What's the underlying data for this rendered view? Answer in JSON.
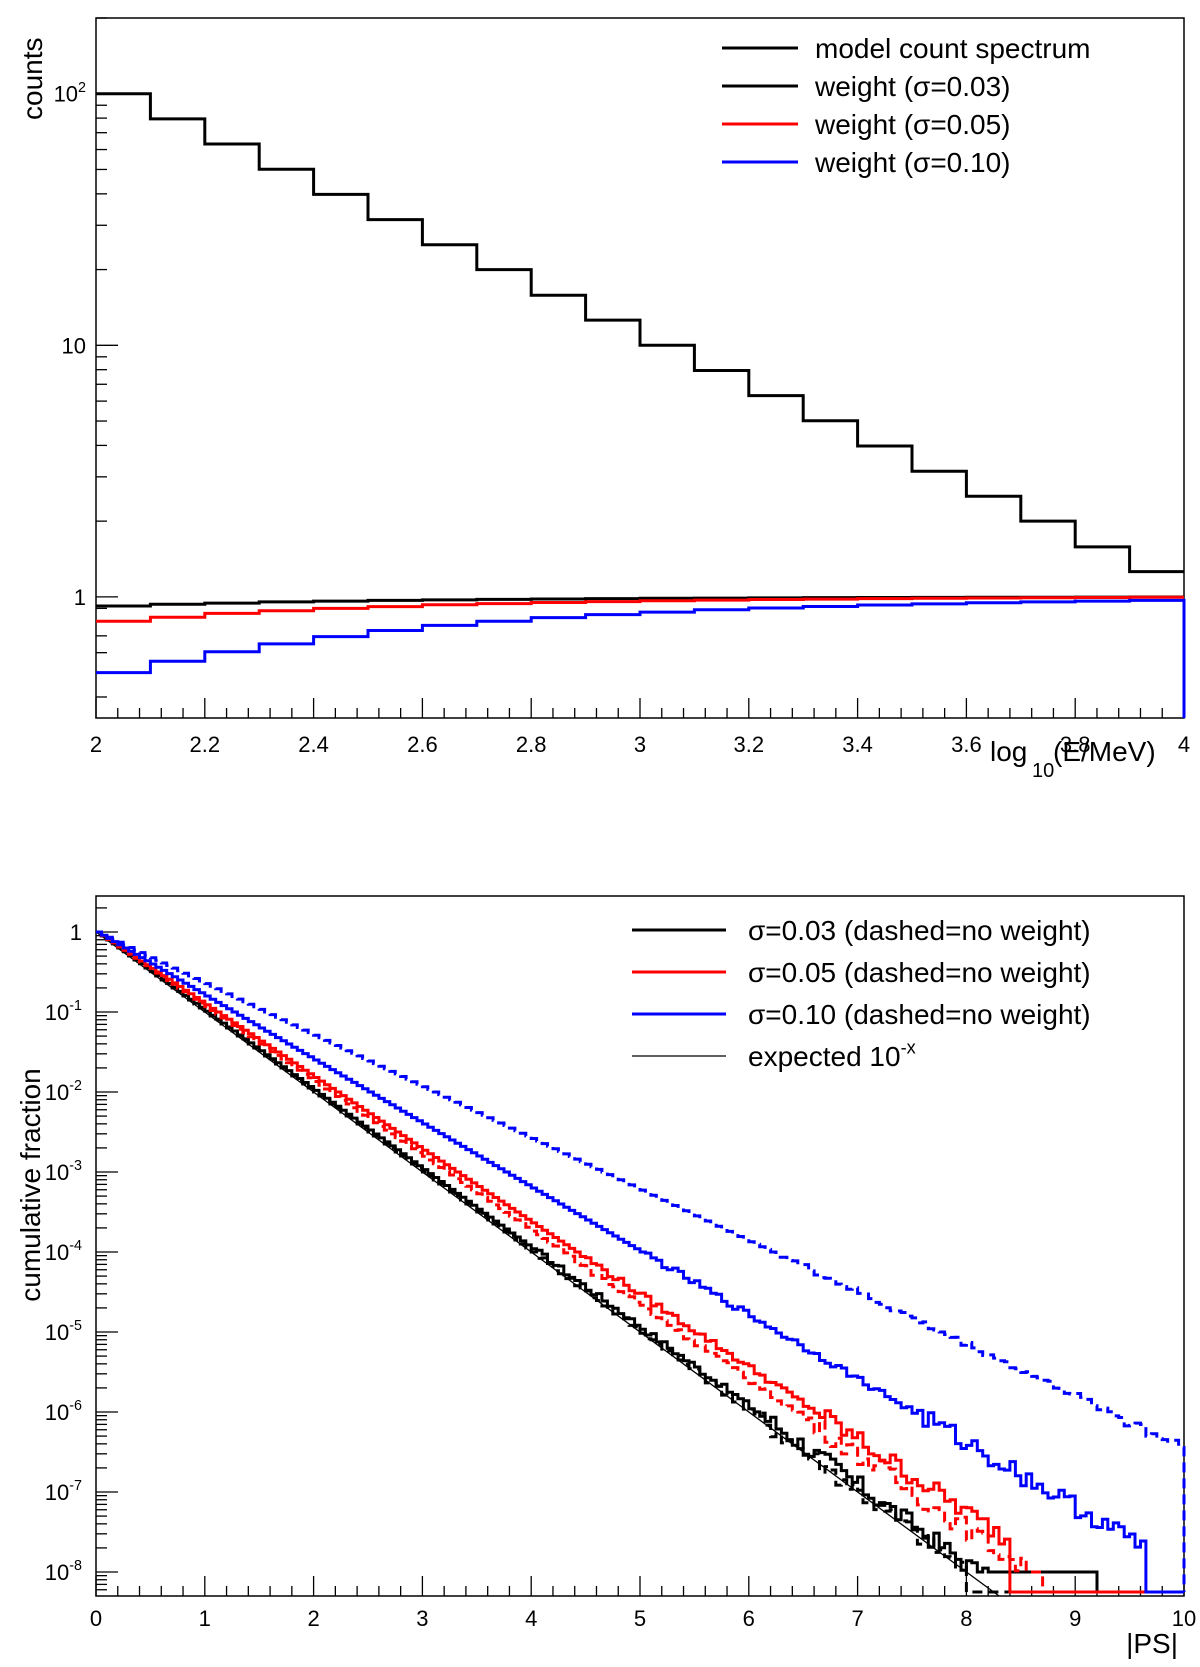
{
  "chart_data": [
    {
      "type": "line",
      "subtype": "step-histogram",
      "xlabel_main": "log",
      "xlabel_sub": "10",
      "xlabel_rest": "(E/MeV)",
      "ylabel": "counts",
      "xlim": [
        2,
        4
      ],
      "ylim": [
        0.33,
        200
      ],
      "yscale": "log",
      "grid": false,
      "legend_position": "top-right",
      "x_ticks": [
        "2",
        "2.2",
        "2.4",
        "2.6",
        "2.8",
        "3",
        "3.2",
        "3.4",
        "3.6",
        "3.8",
        "4"
      ],
      "y_ticks": [
        {
          "value": 1,
          "label": "1"
        },
        {
          "value": 10,
          "label": "10"
        },
        {
          "value": 100,
          "label": "10",
          "sup": "2"
        }
      ],
      "bin_edges": [
        2,
        2.1,
        2.2,
        2.3,
        2.4,
        2.5,
        2.6,
        2.7,
        2.8,
        2.9,
        3,
        3.1,
        3.2,
        3.3,
        3.4,
        3.5,
        3.6,
        3.7,
        3.8,
        3.9,
        4
      ],
      "series": [
        {
          "name": "model count spectrum",
          "color": "#000000",
          "dashed": false,
          "values": [
            100,
            79.4,
            63.1,
            50.1,
            39.8,
            31.6,
            25.1,
            20,
            15.8,
            12.6,
            10,
            7.94,
            6.31,
            5.01,
            3.98,
            3.16,
            2.51,
            2,
            1.58,
            1.26
          ]
        },
        {
          "name": "weight (σ=0.03)",
          "color": "#000000",
          "dashed": false,
          "values": [
            0.92,
            0.935,
            0.945,
            0.955,
            0.962,
            0.968,
            0.973,
            0.977,
            0.981,
            0.984,
            0.987,
            0.989,
            0.991,
            0.993,
            0.994,
            0.995,
            0.996,
            0.997,
            0.998,
            0.999
          ]
        },
        {
          "name": "weight (σ=0.05)",
          "color": "#ff0000",
          "dashed": false,
          "values": [
            0.8,
            0.83,
            0.86,
            0.88,
            0.9,
            0.915,
            0.93,
            0.94,
            0.95,
            0.958,
            0.965,
            0.971,
            0.976,
            0.98,
            0.984,
            0.987,
            0.99,
            0.992,
            0.994,
            0.996
          ]
        },
        {
          "name": "weight (σ=0.10)",
          "color": "#0000ff",
          "dashed": false,
          "values": [
            0.5,
            0.555,
            0.605,
            0.65,
            0.695,
            0.735,
            0.77,
            0.8,
            0.827,
            0.85,
            0.87,
            0.888,
            0.903,
            0.916,
            0.928,
            0.938,
            0.947,
            0.955,
            0.962,
            0.968
          ]
        }
      ]
    },
    {
      "type": "line",
      "subtype": "step-cumulative",
      "xlabel": "|PS|",
      "ylabel": "cumulative fraction",
      "xlim": [
        0,
        10
      ],
      "ylim_log10": [
        -8.3,
        0.45
      ],
      "yscale": "log",
      "grid": false,
      "legend_position": "top-right",
      "x_ticks": [
        "0",
        "1",
        "2",
        "3",
        "4",
        "5",
        "6",
        "7",
        "8",
        "9",
        "10"
      ],
      "y_ticks": [
        {
          "value": 1,
          "label": "1",
          "sup": ""
        },
        {
          "value": 0.1,
          "label": "10",
          "sup": "-1"
        },
        {
          "value": 0.01,
          "label": "10",
          "sup": "-2"
        },
        {
          "value": 0.001,
          "label": "10",
          "sup": "-3"
        },
        {
          "value": 0.0001,
          "label": "10",
          "sup": "-4"
        },
        {
          "value": 1e-05,
          "label": "10",
          "sup": "-5"
        },
        {
          "value": 1e-06,
          "label": "10",
          "sup": "-6"
        },
        {
          "value": 1e-07,
          "label": "10",
          "sup": "-7"
        },
        {
          "value": 1e-08,
          "label": "10",
          "sup": "-8"
        }
      ],
      "series": [
        {
          "name": "σ=0.03 (dashed=no weight)",
          "color": "#000000",
          "dashed": false,
          "slope": 1.01,
          "cutoff": 9.2,
          "floor_until": 9.2
        },
        {
          "name": "σ=0.03 no weight",
          "color": "#000000",
          "dashed": true,
          "slope": 1.0,
          "cutoff": 8.0,
          "floor_until": 8.0
        },
        {
          "name": "σ=0.05 (dashed=no weight)",
          "color": "#ff0000",
          "dashed": false,
          "slope": 1.1,
          "cutoff": 8.4,
          "floor_until": 8.4
        },
        {
          "name": "σ=0.05 no weight",
          "color": "#ff0000",
          "dashed": true,
          "slope": 1.07,
          "cutoff": 8.7,
          "floor_until": 8.7
        },
        {
          "name": "σ=0.10 (dashed=no weight)",
          "color": "#0000ff",
          "dashed": false,
          "slope": 1.25,
          "cutoff": 9.65,
          "floor_until": 9.65
        },
        {
          "name": "σ=0.10 no weight",
          "color": "#0000ff",
          "dashed": true,
          "slope": 1.55,
          "cutoff": 10.0,
          "floor_until": 10.0
        }
      ],
      "reference": {
        "name": "expected 10",
        "sup": "-x",
        "color": "#000000"
      },
      "legend": [
        {
          "label": "σ=0.03 (dashed=no weight)",
          "color": "#000000",
          "thin": false
        },
        {
          "label": "σ=0.05 (dashed=no weight)",
          "color": "#ff0000",
          "thin": false
        },
        {
          "label": "σ=0.10 (dashed=no weight)",
          "color": "#0000ff",
          "thin": false
        },
        {
          "label": "expected 10",
          "sup": "-x",
          "color": "#000000",
          "thin": true
        }
      ]
    }
  ]
}
